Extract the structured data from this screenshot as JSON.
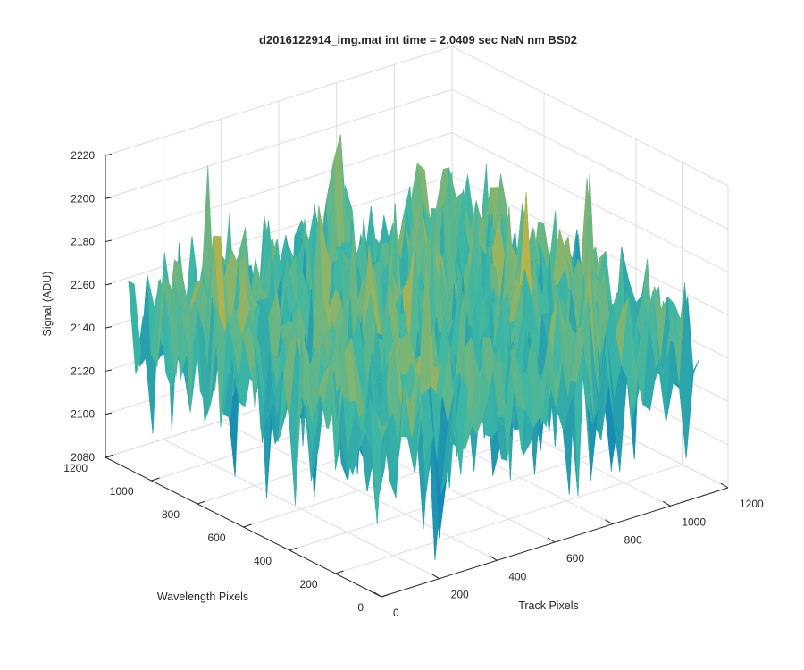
{
  "chart_data": {
    "type": "surface",
    "title": "d2016122914_img.mat int time = 2.0409 sec  NaN nm BS02",
    "xlabel": "Track Pixels",
    "ylabel": "Wavelength Pixels",
    "zlabel": "Signal (ADU)",
    "xlim": [
      0,
      1200
    ],
    "ylim": [
      0,
      1200
    ],
    "zlim": [
      2080,
      2220
    ],
    "xticks": [
      0,
      200,
      400,
      600,
      800,
      1000,
      1200
    ],
    "yticks": [
      0,
      200,
      400,
      600,
      800,
      1000,
      1200
    ],
    "zticks": [
      2080,
      2100,
      2120,
      2140,
      2160,
      2180,
      2200,
      2220
    ],
    "grid": true,
    "colormap": "parula",
    "colors": {
      "low": "#0072BD",
      "mid": "#3DB7A5",
      "high": "#EDB120"
    },
    "data_extent": {
      "x": [
        0,
        1100
      ],
      "y": [
        0,
        1100
      ]
    },
    "surface_summary": {
      "mean_signal": 2150,
      "typical_range": [
        2105,
        2195
      ],
      "min_signal": 2085,
      "max_signal": 2215
    }
  }
}
